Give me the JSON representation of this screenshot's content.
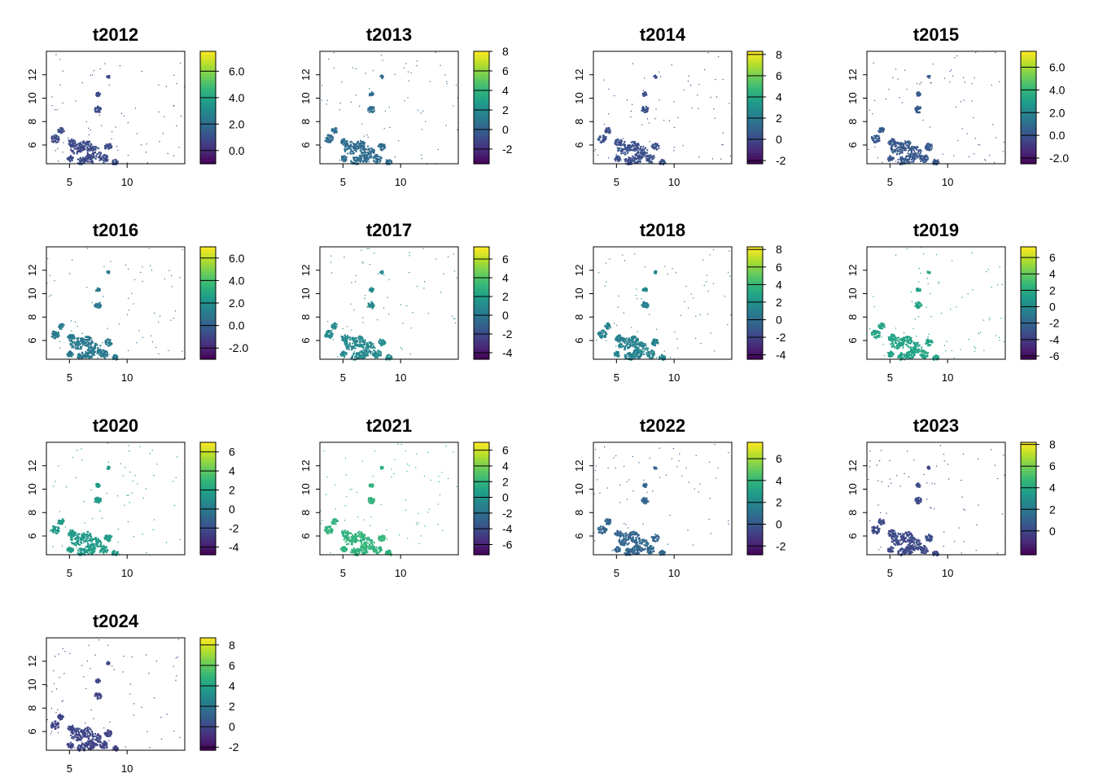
{
  "colors": {
    "frame": "#000000",
    "background": "#ffffff",
    "palette": [
      "#440154",
      "#482878",
      "#3e4a89",
      "#31688e",
      "#26828e",
      "#1f9e89",
      "#35b779",
      "#6ece58",
      "#b5de2b",
      "#fde725"
    ]
  },
  "chart_data": [
    {
      "type": "heatmap",
      "title": "t2012",
      "xlabel": "",
      "ylabel": "",
      "xlim": [
        3.0,
        15.0
      ],
      "ylim": [
        4.4,
        14.0
      ],
      "x_ticks": [
        "5",
        "10"
      ],
      "y_ticks": [
        "6",
        "8",
        "10",
        "12"
      ],
      "legend_range": [
        -1.0,
        7.5
      ],
      "legend_ticks": [
        "0.0",
        "2.0",
        "4.0",
        "6.0"
      ],
      "legend_position": "right",
      "cell_level": 0.2
    },
    {
      "type": "heatmap",
      "title": "t2013",
      "xlabel": "",
      "ylabel": "",
      "xlim": [
        3.0,
        15.0
      ],
      "ylim": [
        4.4,
        14.0
      ],
      "x_ticks": [
        "5",
        "10"
      ],
      "y_ticks": [
        "6",
        "8",
        "10",
        "12"
      ],
      "legend_range": [
        -3.5,
        8.0
      ],
      "legend_ticks": [
        "-2",
        "0",
        "2",
        "4",
        "6",
        "8"
      ],
      "legend_position": "right",
      "cell_level": 0.33
    },
    {
      "type": "heatmap",
      "title": "t2014",
      "xlabel": "",
      "ylabel": "",
      "xlim": [
        3.0,
        15.0
      ],
      "ylim": [
        4.4,
        14.0
      ],
      "x_ticks": [
        "5",
        "10"
      ],
      "y_ticks": [
        "6",
        "8",
        "10",
        "12"
      ],
      "legend_range": [
        -2.3,
        8.3
      ],
      "legend_ticks": [
        "-2",
        "0",
        "2",
        "4",
        "6",
        "8"
      ],
      "legend_position": "right",
      "cell_level": 0.22
    },
    {
      "type": "heatmap",
      "title": "t2015",
      "xlabel": "",
      "ylabel": "",
      "xlim": [
        3.0,
        15.0
      ],
      "ylim": [
        4.4,
        14.0
      ],
      "x_ticks": [
        "5",
        "10"
      ],
      "y_ticks": [
        "6",
        "8",
        "10",
        "12"
      ],
      "legend_range": [
        -2.5,
        7.4
      ],
      "legend_ticks": [
        "-2.0",
        "0.0",
        "2.0",
        "4.0",
        "6.0"
      ],
      "legend_position": "right",
      "cell_level": 0.25
    },
    {
      "type": "heatmap",
      "title": "t2016",
      "xlabel": "",
      "ylabel": "",
      "xlim": [
        3.0,
        15.0
      ],
      "ylim": [
        4.4,
        14.0
      ],
      "x_ticks": [
        "5",
        "10"
      ],
      "y_ticks": [
        "6",
        "8",
        "10",
        "12"
      ],
      "legend_range": [
        -3.0,
        7.0
      ],
      "legend_ticks": [
        "-2.0",
        "0.0",
        "2.0",
        "4.0",
        "6.0"
      ],
      "legend_position": "right",
      "cell_level": 0.38
    },
    {
      "type": "heatmap",
      "title": "t2017",
      "xlabel": "",
      "ylabel": "",
      "xlim": [
        3.0,
        15.0
      ],
      "ylim": [
        4.4,
        14.0
      ],
      "x_ticks": [
        "5",
        "10"
      ],
      "y_ticks": [
        "6",
        "8",
        "10",
        "12"
      ],
      "legend_range": [
        -4.7,
        7.3
      ],
      "legend_ticks": [
        "-4",
        "-2",
        "0",
        "2",
        "4",
        "6"
      ],
      "legend_position": "right",
      "cell_level": 0.45
    },
    {
      "type": "heatmap",
      "title": "t2018",
      "xlabel": "",
      "ylabel": "",
      "xlim": [
        3.0,
        15.0
      ],
      "ylim": [
        4.4,
        14.0
      ],
      "x_ticks": [
        "5",
        "10"
      ],
      "y_ticks": [
        "6",
        "8",
        "10",
        "12"
      ],
      "legend_range": [
        -4.5,
        8.3
      ],
      "legend_ticks": [
        "-4",
        "-2",
        "0",
        "2",
        "4",
        "6",
        "8"
      ],
      "legend_position": "right",
      "cell_level": 0.42
    },
    {
      "type": "heatmap",
      "title": "t2019",
      "xlabel": "",
      "ylabel": "",
      "xlim": [
        3.0,
        15.0
      ],
      "ylim": [
        4.4,
        14.0
      ],
      "x_ticks": [
        "5",
        "10"
      ],
      "y_ticks": [
        "6",
        "8",
        "10",
        "12"
      ],
      "legend_range": [
        -6.4,
        7.3
      ],
      "legend_ticks": [
        "-6",
        "-4",
        "-2",
        "0",
        "2",
        "4",
        "6"
      ],
      "legend_position": "right",
      "cell_level": 0.55
    },
    {
      "type": "heatmap",
      "title": "t2020",
      "xlabel": "",
      "ylabel": "",
      "xlim": [
        3.0,
        15.0
      ],
      "ylim": [
        4.4,
        14.0
      ],
      "x_ticks": [
        "5",
        "10"
      ],
      "y_ticks": [
        "6",
        "8",
        "10",
        "12"
      ],
      "legend_range": [
        -4.8,
        7.0
      ],
      "legend_ticks": [
        "-4",
        "-2",
        "0",
        "2",
        "4",
        "6"
      ],
      "legend_position": "right",
      "cell_level": 0.52
    },
    {
      "type": "heatmap",
      "title": "t2021",
      "xlabel": "",
      "ylabel": "",
      "xlim": [
        3.0,
        15.0
      ],
      "ylim": [
        4.4,
        14.0
      ],
      "x_ticks": [
        "5",
        "10"
      ],
      "y_ticks": [
        "6",
        "8",
        "10",
        "12"
      ],
      "legend_range": [
        -7.3,
        7.0
      ],
      "legend_ticks": [
        "-6",
        "-4",
        "-2",
        "0",
        "2",
        "4",
        "6"
      ],
      "legend_position": "right",
      "cell_level": 0.62
    },
    {
      "type": "heatmap",
      "title": "t2022",
      "xlabel": "",
      "ylabel": "",
      "xlim": [
        3.0,
        15.0
      ],
      "ylim": [
        4.4,
        14.0
      ],
      "x_ticks": [
        "5",
        "10"
      ],
      "y_ticks": [
        "6",
        "8",
        "10",
        "12"
      ],
      "legend_range": [
        -2.8,
        7.5
      ],
      "legend_ticks": [
        "-2",
        "0",
        "2",
        "4",
        "6"
      ],
      "legend_position": "right",
      "cell_level": 0.3
    },
    {
      "type": "heatmap",
      "title": "t2023",
      "xlabel": "",
      "ylabel": "",
      "xlim": [
        3.0,
        15.0
      ],
      "ylim": [
        4.4,
        14.0
      ],
      "x_ticks": [
        "5",
        "10"
      ],
      "y_ticks": [
        "6",
        "8",
        "10",
        "12"
      ],
      "legend_range": [
        -2.2,
        8.2
      ],
      "legend_ticks": [
        "0",
        "2",
        "4",
        "6",
        "8"
      ],
      "legend_position": "right",
      "cell_level": 0.2
    },
    {
      "type": "heatmap",
      "title": "t2024",
      "xlabel": "",
      "ylabel": "",
      "xlim": [
        3.0,
        15.0
      ],
      "ylim": [
        4.4,
        14.0
      ],
      "x_ticks": [
        "5",
        "10"
      ],
      "y_ticks": [
        "6",
        "8",
        "10",
        "12"
      ],
      "legend_range": [
        -2.3,
        8.7
      ],
      "legend_ticks": [
        "-2",
        "0",
        "2",
        "4",
        "6",
        "8"
      ],
      "legend_position": "right",
      "cell_level": 0.18
    }
  ]
}
